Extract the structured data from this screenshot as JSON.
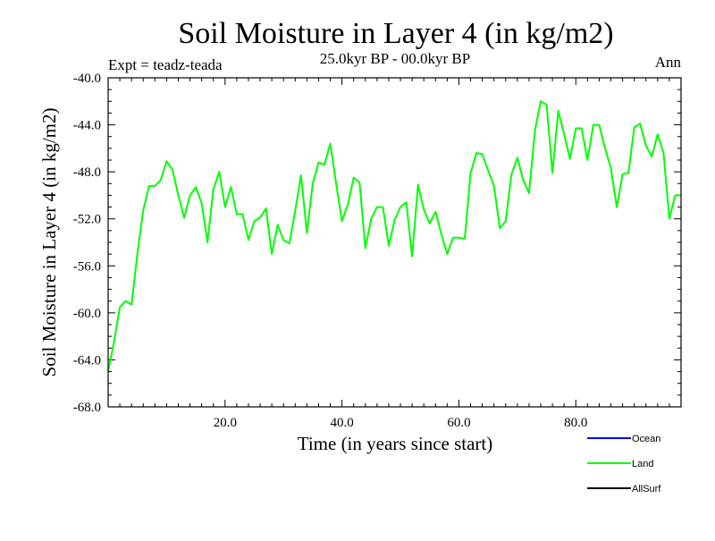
{
  "chart_data": {
    "type": "line",
    "title": "Soil Moisture in Layer 4 (in kg/m2)",
    "subtitle_left": "Expt = teadz-teada",
    "subtitle_center": "25.0kyr BP - 00.0kyr BP",
    "subtitle_right": "Ann",
    "xlabel": "Time (in years since start)",
    "ylabel": "Soil Moisture in Layer 4 (in kg/m2)",
    "xlim": [
      0,
      98
    ],
    "ylim": [
      -68,
      -40
    ],
    "x_ticks": [
      20,
      40,
      60,
      80
    ],
    "x_tick_labels": [
      "20.0",
      "40.0",
      "60.0",
      "80.0"
    ],
    "y_ticks": [
      -40,
      -44,
      -48,
      -52,
      -56,
      -60,
      -64,
      -68
    ],
    "y_tick_labels": [
      "-40.0",
      "-44.0",
      "-48.0",
      "-52.0",
      "-56.0",
      "-60.0",
      "-64.0",
      "-68.0"
    ],
    "x": [
      0,
      1,
      2,
      3,
      4,
      5,
      6,
      7,
      8,
      9,
      10,
      11,
      12,
      13,
      14,
      15,
      16,
      17,
      18,
      19,
      20,
      21,
      22,
      23,
      24,
      25,
      26,
      27,
      28,
      29,
      30,
      31,
      32,
      33,
      34,
      35,
      36,
      37,
      38,
      39,
      40,
      41,
      42,
      43,
      44,
      45,
      46,
      47,
      48,
      49,
      50,
      51,
      52,
      53,
      54,
      55,
      56,
      57,
      58,
      59,
      60,
      61,
      62,
      63,
      64,
      65,
      66,
      67,
      68,
      69,
      70,
      71,
      72,
      73,
      74,
      75,
      76,
      77,
      78,
      79,
      80,
      81,
      82,
      83,
      84,
      85,
      86,
      87,
      88,
      89,
      90,
      91,
      92,
      93,
      94,
      95,
      96,
      97,
      98
    ],
    "series": [
      {
        "name": "Land",
        "color": "#00ff00",
        "values": [
          -65.0,
          -62.5,
          -59.5,
          -59.0,
          -59.3,
          -55.0,
          -51.3,
          -49.2,
          -49.2,
          -48.7,
          -47.1,
          -47.8,
          -50.0,
          -51.9,
          -50.0,
          -49.3,
          -50.7,
          -54.0,
          -49.5,
          -48.0,
          -51.0,
          -49.3,
          -51.6,
          -51.6,
          -53.8,
          -52.2,
          -51.9,
          -51.1,
          -55.0,
          -52.5,
          -53.8,
          -54.1,
          -51.3,
          -48.3,
          -53.2,
          -49.0,
          -47.2,
          -47.4,
          -45.6,
          -49.0,
          -52.2,
          -50.8,
          -48.5,
          -48.9,
          -54.5,
          -52.0,
          -51.0,
          -51.0,
          -54.3,
          -52.1,
          -51.0,
          -50.6,
          -55.2,
          -49.1,
          -51.2,
          -52.4,
          -51.4,
          -53.3,
          -55.0,
          -53.6,
          -53.6,
          -53.7,
          -48.1,
          -46.4,
          -46.5,
          -47.9,
          -49.2,
          -52.8,
          -52.2,
          -48.2,
          -46.8,
          -48.7,
          -49.8,
          -44.5,
          -42.0,
          -42.3,
          -48.1,
          -42.8,
          -44.8,
          -46.9,
          -44.3,
          -44.3,
          -47.0,
          -44.0,
          -44.0,
          -46.0,
          -47.7,
          -51.0,
          -48.2,
          -48.1,
          -44.2,
          -43.9,
          -45.8,
          -46.7,
          -44.8,
          -46.4,
          -52.0,
          -50.0,
          -50.0
        ]
      }
    ],
    "legend": [
      {
        "label": "Ocean",
        "color": "#0000ff"
      },
      {
        "label": "Land",
        "color": "#00ff00"
      },
      {
        "label": "AllSurf",
        "color": "#000000"
      }
    ],
    "legend_position": "bottom-right",
    "grid": false
  }
}
